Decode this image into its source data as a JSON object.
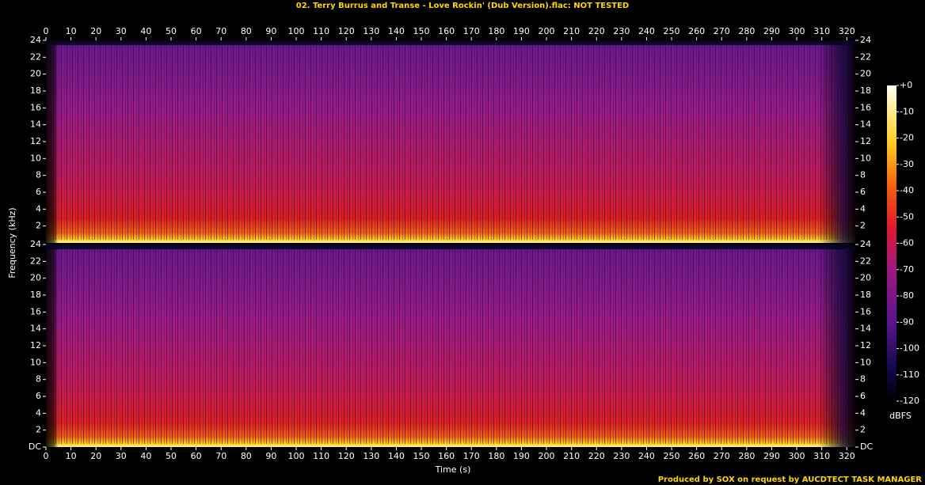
{
  "chart_data": {
    "type": "spectrogram",
    "title": "02. Terry Burrus and Transe - Love Rockin' (Dub Version).flac: NOT TESTED",
    "xlabel": "Time (s)",
    "ylabel": "Frequency (kHz)",
    "xlim": [
      0,
      323.4
    ],
    "xticks": [
      0,
      10,
      20,
      30,
      40,
      50,
      60,
      70,
      80,
      90,
      100,
      110,
      120,
      130,
      140,
      150,
      160,
      170,
      180,
      190,
      200,
      210,
      220,
      230,
      240,
      250,
      260,
      270,
      280,
      290,
      300,
      310,
      320
    ],
    "channels": [
      {
        "ylim": [
          0,
          24
        ],
        "yticks": [
          2,
          4,
          6,
          8,
          10,
          12,
          14,
          16,
          18,
          20,
          22,
          24
        ]
      },
      {
        "ylim": [
          0,
          24
        ],
        "yticks": [
          {
            "value": 0,
            "label": "DC"
          },
          2,
          4,
          6,
          8,
          10,
          12,
          14,
          16,
          18,
          20,
          22,
          24
        ]
      }
    ],
    "colorbar": {
      "label": "dBFS",
      "clim": [
        -120,
        0
      ],
      "ticks": [
        {
          "value": 0,
          "label": "+0"
        },
        -10,
        -20,
        -30,
        -40,
        -50,
        -60,
        -70,
        -80,
        -90,
        -100,
        -110,
        -120
      ]
    },
    "footer": "Produced by SOX on request by AUCDTECT TASK MANAGER"
  }
}
